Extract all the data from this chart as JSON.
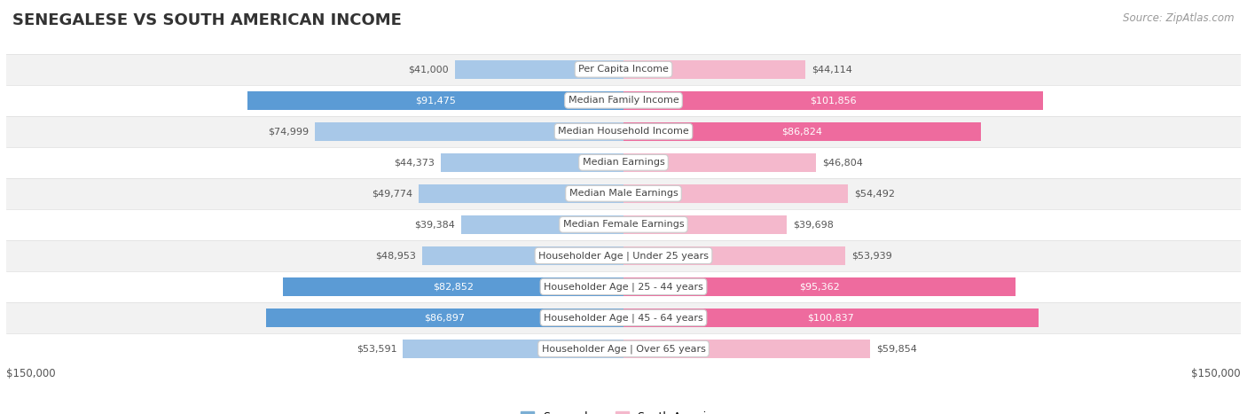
{
  "title": "SENEGALESE VS SOUTH AMERICAN INCOME",
  "source": "Source: ZipAtlas.com",
  "categories": [
    "Per Capita Income",
    "Median Family Income",
    "Median Household Income",
    "Median Earnings",
    "Median Male Earnings",
    "Median Female Earnings",
    "Householder Age | Under 25 years",
    "Householder Age | 25 - 44 years",
    "Householder Age | 45 - 64 years",
    "Householder Age | Over 65 years"
  ],
  "senegalese": [
    41000,
    91475,
    74999,
    44373,
    49774,
    39384,
    48953,
    82852,
    86897,
    53591
  ],
  "south_american": [
    44114,
    101856,
    86824,
    46804,
    54492,
    39698,
    53939,
    95362,
    100837,
    59854
  ],
  "senegalese_labels": [
    "$41,000",
    "$91,475",
    "$74,999",
    "$44,373",
    "$49,774",
    "$39,384",
    "$48,953",
    "$82,852",
    "$86,897",
    "$53,591"
  ],
  "south_american_labels": [
    "$44,114",
    "$101,856",
    "$86,824",
    "$46,804",
    "$54,492",
    "$39,698",
    "$53,939",
    "$95,362",
    "$100,837",
    "$59,854"
  ],
  "senegalese_label_inside": [
    false,
    true,
    false,
    false,
    false,
    false,
    false,
    true,
    true,
    false
  ],
  "south_american_label_inside": [
    false,
    true,
    true,
    false,
    false,
    false,
    false,
    true,
    true,
    false
  ],
  "max_val": 150000,
  "blue_light": "#A8C8E8",
  "blue_mid": "#7BAFD4",
  "blue_dark": "#5B9BD5",
  "pink_light": "#F4B8CC",
  "pink_mid": "#F08AAA",
  "pink_dark": "#EE6B9E",
  "row_colors": [
    "#F2F2F2",
    "#FFFFFF",
    "#F2F2F2",
    "#FFFFFF",
    "#F2F2F2",
    "#FFFFFF",
    "#F2F2F2",
    "#FFFFFF",
    "#F2F2F2",
    "#FFFFFF"
  ],
  "legend_blue": "#7BAFD4",
  "legend_pink": "#F4B8CC",
  "xlabel_left": "$150,000",
  "xlabel_right": "$150,000",
  "title_fontsize": 13,
  "label_fontsize": 8,
  "category_fontsize": 8,
  "source_fontsize": 8.5,
  "bar_height": 0.6,
  "sen_inside_threshold": 75000,
  "sam_inside_threshold": 75000
}
